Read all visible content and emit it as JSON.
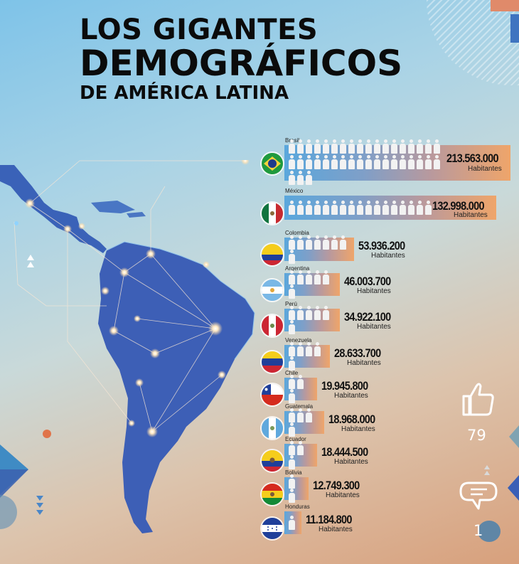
{
  "title": {
    "line1": "LOS GIGANTES",
    "line2": "DEMOGRÁFICOS",
    "line3": "DE AMÉRICA LATINA"
  },
  "unit_label": "Habitantes",
  "countries": [
    {
      "name": "Brasil",
      "population": "213.563.000",
      "icons": 39,
      "flag": "brazil-flag"
    },
    {
      "name": "México",
      "population": "132.998.000",
      "icons": 17,
      "flag": "mexico-flag"
    },
    {
      "name": "Colombia",
      "population": "53.936.200",
      "icons": 8,
      "flag": "colombia-flag"
    },
    {
      "name": "Argentina",
      "population": "46.003.700",
      "icons": 6,
      "flag": "argentina-flag"
    },
    {
      "name": "Perú",
      "population": "34.922.100",
      "icons": 6,
      "flag": "peru-flag"
    },
    {
      "name": "Venezuela",
      "population": "28.633.700",
      "icons": 5,
      "flag": "venezuela-flag"
    },
    {
      "name": "Chile",
      "population": "19.945.800",
      "icons": 3,
      "flag": "chile-flag"
    },
    {
      "name": "Guatemala",
      "population": "18.968.000",
      "icons": 4,
      "flag": "guatemala-flag"
    },
    {
      "name": "Ecuador",
      "population": "18.444.500",
      "icons": 3,
      "flag": "ecuador-flag"
    },
    {
      "name": "Bolivia",
      "population": "12.749.300",
      "icons": 2,
      "flag": "bolivia-flag"
    },
    {
      "name": "Honduras",
      "population": "11.184.800",
      "icons": 1,
      "flag": "honduras-flag"
    }
  ],
  "social": {
    "likes": "79",
    "comments": "1"
  },
  "colors": {
    "bar_start": "#5aa7dc",
    "bar_end": "#efa56a",
    "map": "#3a62b8",
    "accent_orange": "#e0744a"
  }
}
